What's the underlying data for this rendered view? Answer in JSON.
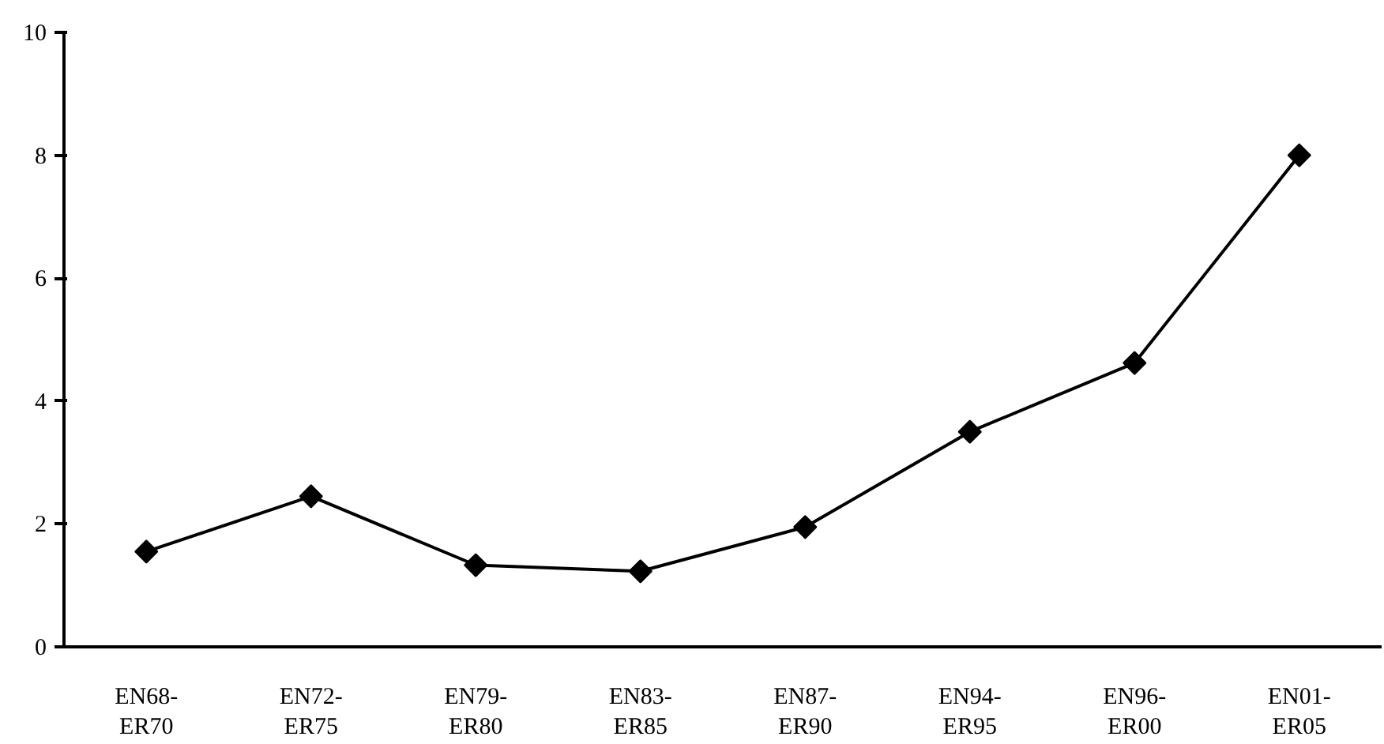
{
  "chart_data": {
    "type": "line",
    "categories": [
      "EN68-\nER70",
      "EN72-\nER75",
      "EN79-\nER80",
      "EN83-\nER85",
      "EN87-\nER90",
      "EN94-\nER95",
      "EN96-\nER00",
      "EN01-\nER05"
    ],
    "series": [
      {
        "color": "#000000",
        "values": [
          1.55,
          2.45,
          1.33,
          1.23,
          1.95,
          3.5,
          4.62,
          8.0
        ]
      }
    ],
    "ylim": [
      0,
      10
    ],
    "yticks": [
      0,
      2,
      4,
      6,
      8,
      10
    ],
    "grid": false,
    "marker": "diamond",
    "line_style": "solid"
  }
}
